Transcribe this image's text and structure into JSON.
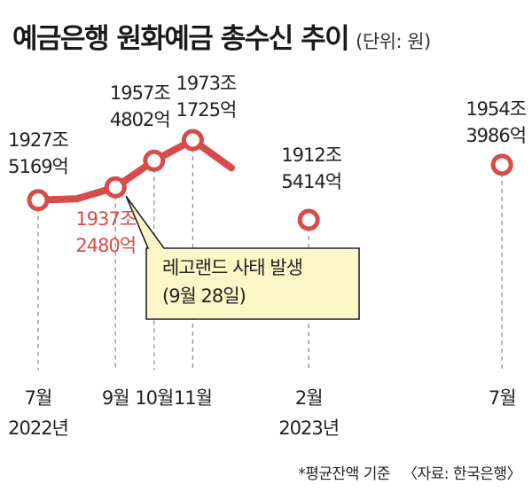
{
  "title": "예금은행 원화예금 총수신 추이",
  "unit": "(단위: 원)",
  "footnote": "*평균잔액 기준",
  "source": "〈자료: 한국은행〉",
  "callout": {
    "line1": "레고랜드 사태 발생",
    "line2": "(9월 28일)"
  },
  "chart_data": {
    "type": "line",
    "title": "예금은행 원화예금 총수신 추이",
    "unit": "(단위: 원)",
    "x": [
      "2022-07",
      "2022-08",
      "2022-09",
      "2022-10",
      "2022-11",
      "2022-12",
      "2023-01",
      "2023-02",
      "2023-03",
      "2023-04",
      "2023-05",
      "2023-06",
      "2023-07"
    ],
    "values": [
      1927.52,
      null,
      1937.25,
      1957.48,
      1973.17,
      null,
      null,
      1912.54,
      null,
      null,
      null,
      null,
      1954.4
    ],
    "color": "#d94a4a",
    "point_labels": [
      {
        "month": "2022-07",
        "line1": "1927조",
        "line2": "5169억"
      },
      {
        "month": "2022-09",
        "line1": "1937조",
        "line2": "2480억",
        "highlight": true
      },
      {
        "month": "2022-10",
        "line1": "1957조",
        "line2": "4802억"
      },
      {
        "month": "2022-11",
        "line1": "1973조",
        "line2": "1725억"
      },
      {
        "month": "2023-02",
        "line1": "1912조",
        "line2": "5414억"
      },
      {
        "month": "2023-07",
        "line1": "1954조",
        "line2": "3986억"
      }
    ],
    "x_ticks": [
      {
        "month": "2022-07",
        "line1": "7월",
        "line2": "2022년"
      },
      {
        "month": "2022-09",
        "line1": "9월",
        "line2": ""
      },
      {
        "month": "2022-10",
        "line1": "10월",
        "line2": ""
      },
      {
        "month": "2022-11",
        "line1": "11월",
        "line2": ""
      },
      {
        "month": "2023-02",
        "line1": "2월",
        "line2": "2023년"
      },
      {
        "month": "2023-07",
        "line1": "7월",
        "line2": ""
      }
    ],
    "grid": false,
    "legend": "none"
  }
}
